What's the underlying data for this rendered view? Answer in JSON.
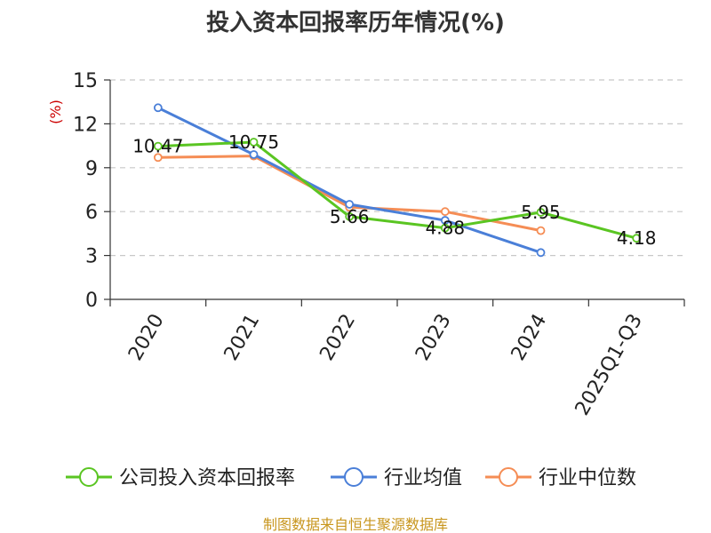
{
  "chart_data": {
    "type": "line",
    "title": "投入资本回报率历年情况(%)",
    "ylabel": "(%)",
    "xlabel": "",
    "categories": [
      "2020",
      "2021",
      "2022",
      "2023",
      "2024",
      "2025Q1-Q3"
    ],
    "ylim": [
      0,
      15
    ],
    "yticks": [
      0,
      3,
      6,
      9,
      12,
      15
    ],
    "grid": true,
    "legend_position": "bottom",
    "series": [
      {
        "name": "公司投入资本回报率",
        "color": "#5ac522",
        "values": [
          10.47,
          10.75,
          5.66,
          4.88,
          5.95,
          4.18
        ],
        "labels": [
          "10.47",
          "10.75",
          "5.66",
          "4.88",
          "5.95",
          "4.18"
        ]
      },
      {
        "name": "行业均值",
        "color": "#4a7fd8",
        "values": [
          13.1,
          9.9,
          6.5,
          5.4,
          3.2,
          null
        ]
      },
      {
        "name": "行业中位数",
        "color": "#f58d55",
        "values": [
          9.7,
          9.8,
          6.3,
          6.0,
          4.7,
          null
        ]
      }
    ],
    "source": "制图数据来自恒生聚源数据库"
  }
}
